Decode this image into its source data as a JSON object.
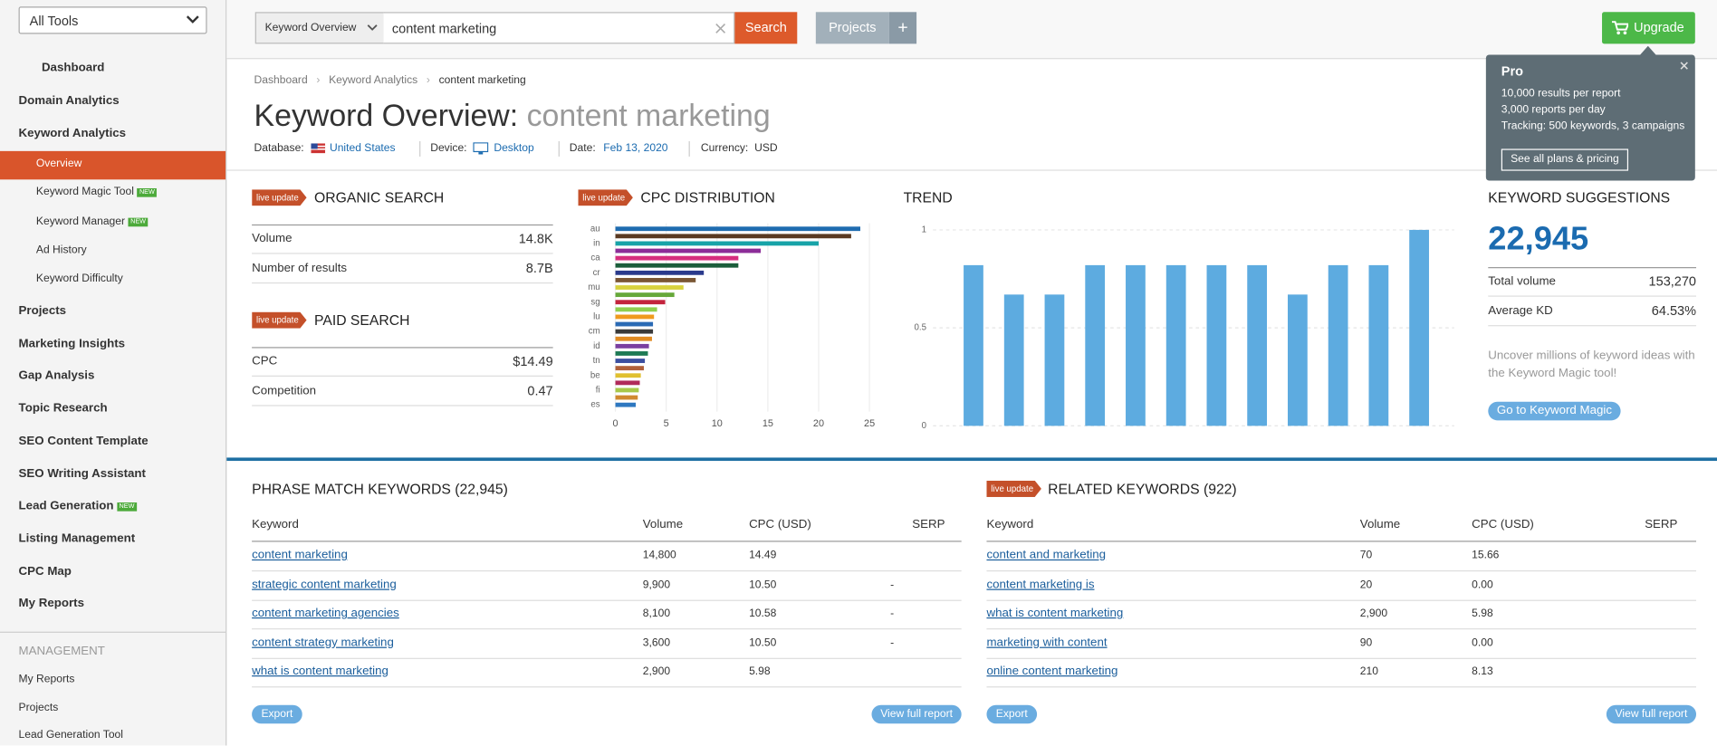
{
  "sidebar": {
    "tool_select": "All Tools",
    "nav": [
      {
        "label": "Dashboard"
      },
      {
        "label": "Domain Analytics"
      },
      {
        "label": "Keyword Analytics",
        "children": [
          {
            "label": "Overview"
          },
          {
            "label": "Keyword Magic Tool",
            "badge": "NEW"
          },
          {
            "label": "Keyword Manager",
            "badge": "NEW"
          },
          {
            "label": "Ad History"
          },
          {
            "label": "Keyword Difficulty"
          }
        ]
      },
      {
        "label": "Projects"
      },
      {
        "label": "Marketing Insights"
      },
      {
        "label": "Gap Analysis"
      },
      {
        "label": "Topic Research"
      },
      {
        "label": "SEO Content Template"
      },
      {
        "label": "SEO Writing Assistant"
      },
      {
        "label": "Lead Generation",
        "badge": "NEW"
      },
      {
        "label": "Listing Management"
      },
      {
        "label": "CPC Map"
      },
      {
        "label": "My Reports"
      }
    ],
    "management": {
      "title": "MANAGEMENT",
      "items": [
        "My Reports",
        "Projects",
        "Lead Generation Tool"
      ]
    }
  },
  "topbar": {
    "report_select": "Keyword Overview",
    "query": "content marketing",
    "search": "Search",
    "projects": "Projects",
    "projects_add": "+",
    "upgrade": "Upgrade"
  },
  "pro_popup": {
    "title": "Pro",
    "lines": [
      "10,000 results per report",
      "3,000 reports per day",
      "Tracking: 500 keywords, 3 campaigns"
    ],
    "button": "See all plans & pricing"
  },
  "breadcrumb": [
    "Dashboard",
    "Keyword Analytics",
    "content marketing"
  ],
  "header": {
    "title": "Keyword Overview:",
    "keyword": "content marketing"
  },
  "filters": {
    "database_label": "Database:",
    "database": "United States",
    "device_label": "Device:",
    "device": "Desktop",
    "date_label": "Date:",
    "date": "Feb 13, 2020",
    "currency_label": "Currency:",
    "currency": "USD"
  },
  "organic_search": {
    "badge": "live update",
    "title": "ORGANIC SEARCH",
    "rows": [
      [
        "Volume",
        "14.8K"
      ],
      [
        "Number of results",
        "8.7B"
      ]
    ]
  },
  "paid_search": {
    "badge": "live update",
    "title": "PAID SEARCH",
    "rows": [
      [
        "CPC",
        "$14.49"
      ],
      [
        "Competition",
        "0.47"
      ]
    ]
  },
  "cpc_distribution": {
    "badge": "live update",
    "title": "CPC DISTRIBUTION",
    "chart_data": {
      "type": "bar",
      "orientation": "horizontal",
      "categories": [
        "au",
        null,
        "in",
        null,
        "ca",
        null,
        "cr",
        null,
        "mu",
        null,
        "sg",
        null,
        "lu",
        null,
        "cm",
        null,
        "id",
        null,
        "tn",
        null,
        "be",
        null,
        "fi",
        null,
        "es"
      ],
      "values": [
        24.1,
        23.2,
        20,
        14.3,
        12.1,
        12.1,
        8.7,
        7.9,
        6.7,
        5.8,
        4.9,
        4.1,
        3.8,
        3.7,
        3.7,
        3.6,
        3.3,
        3.2,
        2.9,
        2.8,
        2.5,
        2.4,
        2.3,
        2.2,
        2.0
      ],
      "colors": [
        "#1f6cb0",
        "#5a3a22",
        "#17a3a8",
        "#8c2d98",
        "#d62e7e",
        "#1b5e3b",
        "#2a3a8c",
        "#7a5634",
        "#d8d23e",
        "#66a83a",
        "#c3243d",
        "#8fcf4f",
        "#ef9a1e",
        "#2a6ab5",
        "#3a3a3a",
        "#e08b23",
        "#7a3fa0",
        "#1e7a55",
        "#3b4fa0",
        "#b0603a",
        "#e0c030",
        "#b02a5a",
        "#a8c84a",
        "#d08a30",
        "#2e78c0"
      ],
      "xlim": [
        0,
        25.5
      ],
      "xticks": [
        0,
        5,
        10,
        15,
        20,
        25
      ],
      "grid": true
    }
  },
  "trend": {
    "title": "TREND",
    "chart_data": {
      "type": "bar",
      "values": [
        0.82,
        0.67,
        0.67,
        0.82,
        0.82,
        0.82,
        0.82,
        0.82,
        0.67,
        0.82,
        0.82,
        1
      ],
      "color": "#5dabe0",
      "ylim": [
        0,
        1
      ],
      "yticks": [
        0,
        0.5,
        1
      ],
      "grid": true
    }
  },
  "keyword_suggestions": {
    "title": "KEYWORD SUGGESTIONS",
    "total": "22,945",
    "rows": [
      [
        "Total volume",
        "153,270"
      ],
      [
        "Average KD",
        "64.53%"
      ]
    ],
    "text": [
      "Uncover millions of keyword ideas with",
      "the Keyword Magic tool!"
    ],
    "button": "Go to Keyword Magic"
  },
  "phrase_match": {
    "title": "PHRASE MATCH KEYWORDS (22,945)",
    "columns": [
      "Keyword",
      "Volume",
      "CPC (USD)",
      "SERP"
    ],
    "rows": [
      [
        "content marketing",
        "14,800",
        "14.49"
      ],
      [
        "strategic content marketing",
        "9,900",
        "10.50",
        "-"
      ],
      [
        "content marketing agencies",
        "8,100",
        "10.58",
        "-"
      ],
      [
        "content strategy marketing",
        "3,600",
        "10.50",
        "-"
      ],
      [
        "what is content marketing",
        "2,900",
        "5.98"
      ]
    ],
    "export": "Export",
    "view": "View full report"
  },
  "related": {
    "badge": "live update",
    "title": "RELATED KEYWORDS (922)",
    "columns": [
      "Keyword",
      "Volume",
      "CPC (USD)",
      "SERP"
    ],
    "rows": [
      [
        "content and marketing",
        "70",
        "15.66"
      ],
      [
        "content marketing is",
        "20",
        "0.00"
      ],
      [
        "what is content marketing",
        "2,900",
        "5.98"
      ],
      [
        "marketing with content",
        "90",
        "0.00"
      ],
      [
        "online content marketing",
        "210",
        "8.13"
      ]
    ],
    "export": "Export",
    "view": "View full report"
  }
}
